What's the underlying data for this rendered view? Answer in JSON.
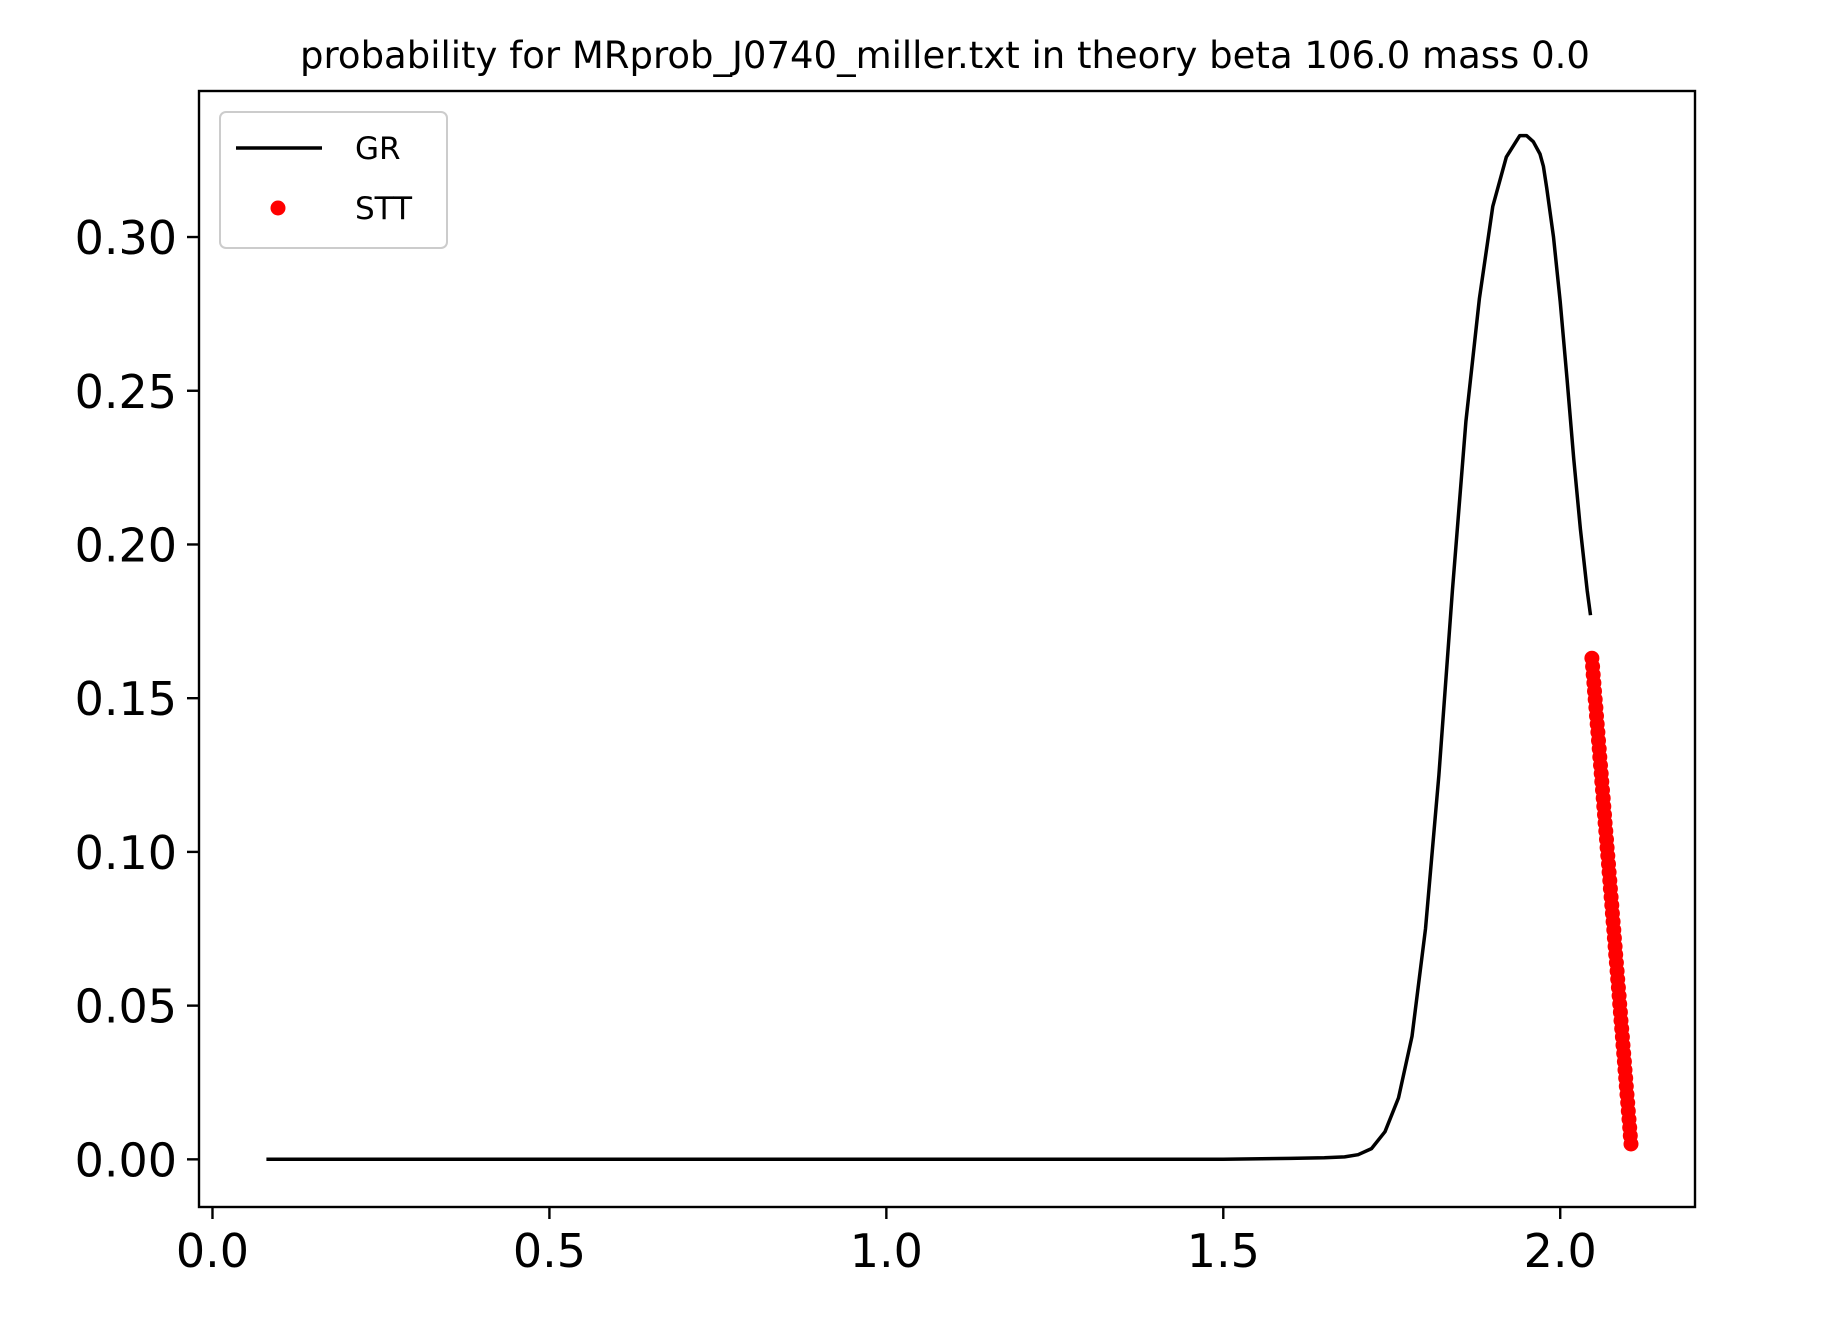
{
  "chart_data": {
    "type": "line",
    "title": "probability for MRprob_J0740_miller.txt in theory beta 106.0 mass 0.0",
    "xlabel": "",
    "ylabel": "",
    "xlim": [
      -0.02,
      2.2
    ],
    "ylim": [
      -0.0155,
      0.3475
    ],
    "x_ticks": [
      0.0,
      0.5,
      1.0,
      1.5,
      2.0
    ],
    "x_tick_labels": [
      "0.0",
      "0.5",
      "1.0",
      "1.5",
      "2.0"
    ],
    "y_ticks": [
      0.0,
      0.05,
      0.1,
      0.15,
      0.2,
      0.25,
      0.3
    ],
    "y_tick_labels": [
      "0.00",
      "0.05",
      "0.10",
      "0.15",
      "0.20",
      "0.25",
      "0.30"
    ],
    "grid": false,
    "legend": {
      "placement": "top-left"
    },
    "series": [
      {
        "name": "GR",
        "style": "line",
        "color": "#000000",
        "x": [
          0.08,
          0.5,
          1.0,
          1.5,
          1.6,
          1.65,
          1.68,
          1.7,
          1.72,
          1.74,
          1.76,
          1.78,
          1.8,
          1.82,
          1.84,
          1.86,
          1.88,
          1.9,
          1.92,
          1.94,
          1.95,
          1.96,
          1.97,
          1.975,
          1.98,
          1.99,
          2.0,
          2.01,
          2.02,
          2.03,
          2.04,
          2.045
        ],
        "y": [
          0.0,
          0.0,
          0.0,
          0.0,
          0.0003,
          0.0005,
          0.0008,
          0.0015,
          0.0035,
          0.009,
          0.02,
          0.04,
          0.075,
          0.125,
          0.185,
          0.24,
          0.28,
          0.31,
          0.326,
          0.333,
          0.333,
          0.331,
          0.327,
          0.323,
          0.316,
          0.3,
          0.279,
          0.254,
          0.228,
          0.205,
          0.185,
          0.177
        ]
      },
      {
        "name": "STT",
        "style": "markers",
        "color": "#ff0000",
        "x_range": [
          2.047,
          2.105
        ],
        "y_range": [
          0.163,
          0.005
        ],
        "count": 60
      }
    ]
  }
}
